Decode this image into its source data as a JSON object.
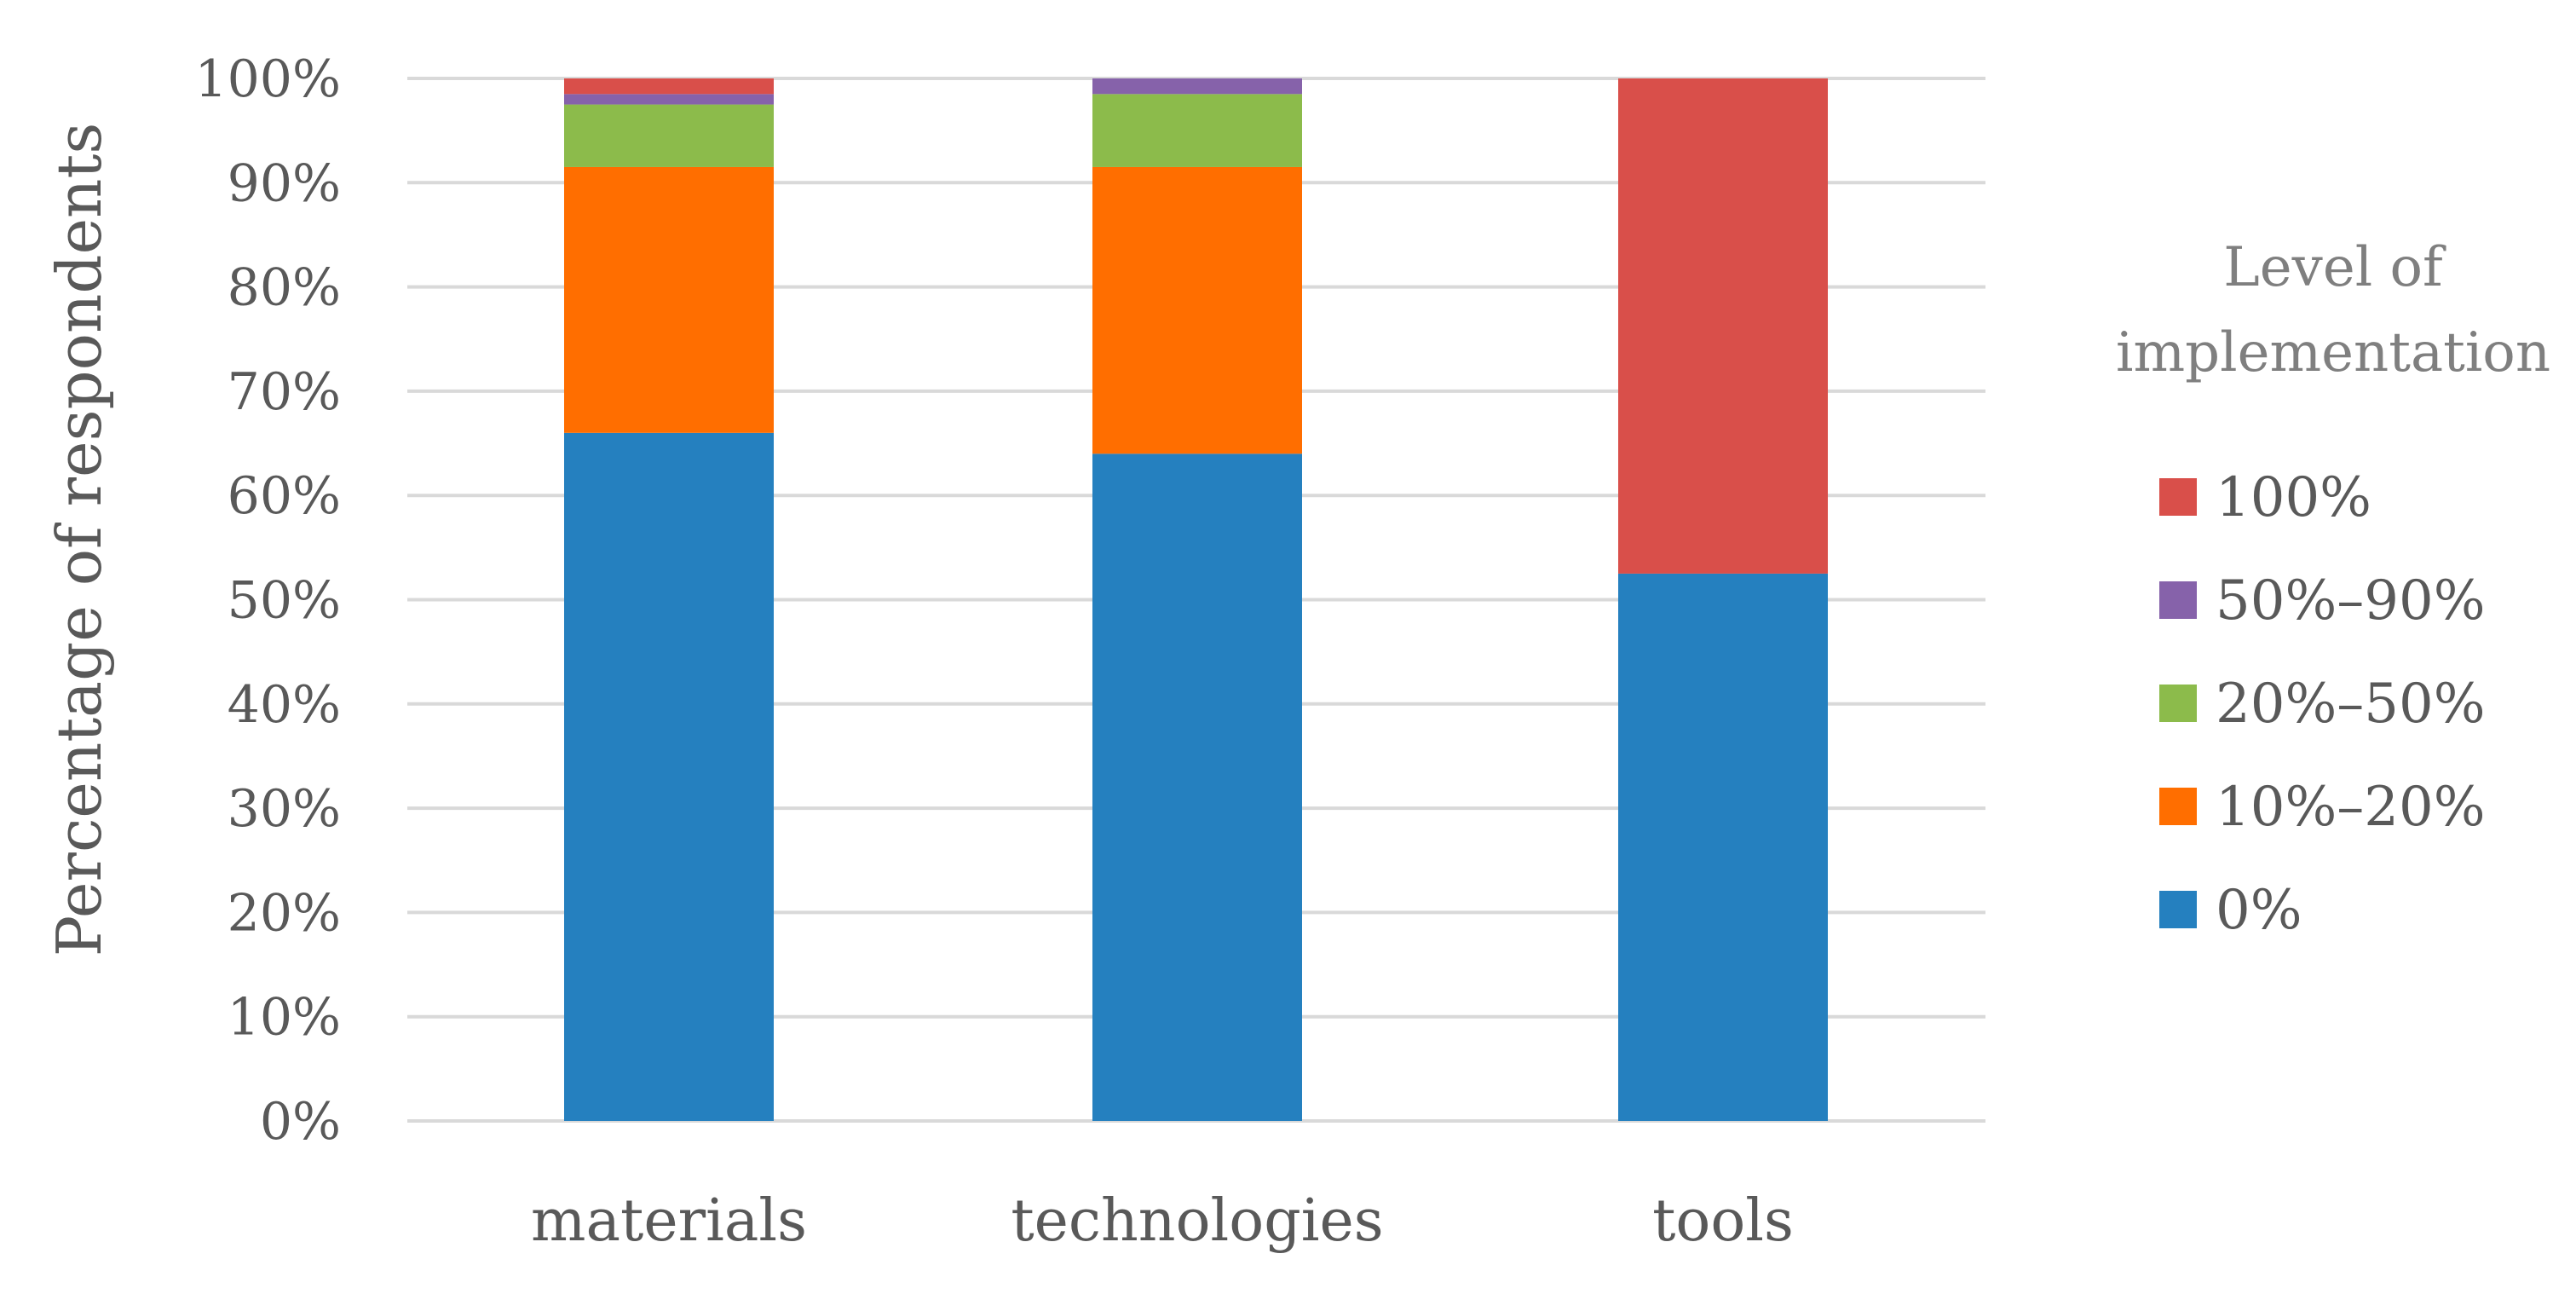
{
  "chart_data": {
    "type": "bar",
    "stacked": true,
    "categories": [
      "materials",
      "technologies",
      "tools"
    ],
    "series": [
      {
        "name": "0%",
        "color": "#2580BF",
        "values": [
          66,
          64,
          52.5
        ]
      },
      {
        "name": "10%–20%",
        "color": "#FF6E00",
        "values": [
          25.5,
          27.5,
          0
        ]
      },
      {
        "name": "20%–50%",
        "color": "#8CBB4B",
        "values": [
          6,
          7,
          0
        ]
      },
      {
        "name": "50%–90%",
        "color": "#8662AA",
        "values": [
          1,
          1.5,
          0
        ]
      },
      {
        "name": "100%",
        "color": "#D94F4A",
        "values": [
          1.5,
          0,
          47.5
        ]
      }
    ],
    "title": "",
    "xlabel": "",
    "ylabel": "Percentage of respondents",
    "ylim": [
      0,
      100
    ],
    "yticks": [
      "0%",
      "10%",
      "20%",
      "30%",
      "40%",
      "50%",
      "60%",
      "70%",
      "80%",
      "90%",
      "100%"
    ],
    "grid": true,
    "legend": {
      "title_lines": [
        "Level of",
        "implementation"
      ],
      "placement": "right",
      "order": [
        "100%",
        "50%–90%",
        "20%–50%",
        "10%–20%",
        "0%"
      ]
    }
  }
}
